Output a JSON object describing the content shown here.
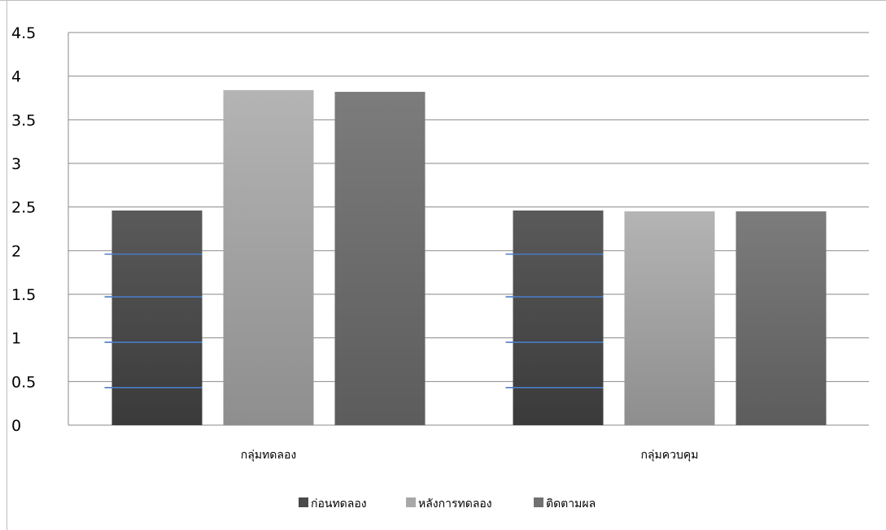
{
  "chart_data": {
    "type": "bar",
    "title": "",
    "xlabel": "",
    "ylabel": "",
    "ylim": [
      0,
      4.5
    ],
    "yticks": [
      "0",
      "0.5",
      "1",
      "1.5",
      "2",
      "2.5",
      "3",
      "3.5",
      "4",
      "4.5"
    ],
    "categories": [
      "กลุ่มทดลอง",
      "กลุ่มควบคุม"
    ],
    "series": [
      {
        "name": "ก่อนทดลอง",
        "values": [
          2.46,
          2.46
        ],
        "color": "#4a4a4a"
      },
      {
        "name": "หลังการทดลอง",
        "values": [
          3.84,
          2.45
        ],
        "color": "#a8a8a8"
      },
      {
        "name": "ติดตามผล",
        "values": [
          3.82,
          2.45
        ],
        "color": "#707070"
      }
    ],
    "grid": true,
    "legend_position": "bottom"
  }
}
